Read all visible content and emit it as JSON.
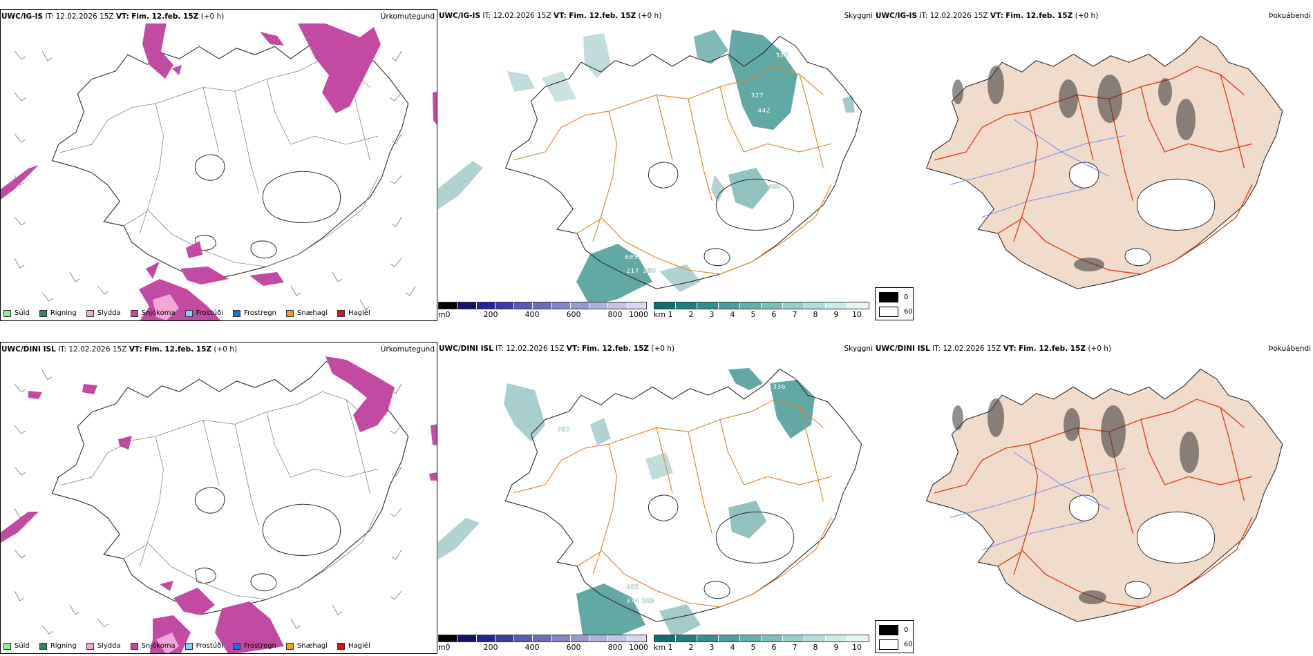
{
  "rows": [
    {
      "model": "UWC/IG-IS",
      "precip_type": {
        "title": "Úrkomutegund"
      },
      "visibility": {
        "title": "Skyggni",
        "labels": [
          "327",
          "327",
          "442",
          "695",
          "217",
          "260",
          "495"
        ]
      },
      "fog": {
        "title": "Þokuábendi"
      }
    },
    {
      "model": "UWC/DINI ISL",
      "precip_type": {
        "title": "Úrkomutegund"
      },
      "visibility": {
        "title": "Skyggni",
        "labels": [
          "336",
          "787",
          "451",
          "374",
          "203"
        ]
      },
      "fog": {
        "title": "Þokuábendi"
      }
    }
  ],
  "header": {
    "it_label": "IT:",
    "it_value": "12.02.2026 15Z",
    "vt_label": "VT:",
    "vt_value": "Fim. 12.feb. 15Z",
    "offset": "(+0 h)"
  },
  "precip_legend": [
    {
      "label": "Súld",
      "color": "#90ee90"
    },
    {
      "label": "Rigning",
      "color": "#2e8b57"
    },
    {
      "label": "Slydda",
      "color": "#f4a6d7"
    },
    {
      "label": "Snjókoma",
      "color": "#c24aa3"
    },
    {
      "label": "Frostúði",
      "color": "#87cefa"
    },
    {
      "label": "Frostregn",
      "color": "#1e6fd9"
    },
    {
      "label": "Snæhagl",
      "color": "#f5a020"
    },
    {
      "label": "Haglél",
      "color": "#e01010"
    }
  ],
  "ceiling_bar": {
    "unit": "m",
    "ticks": [
      "0",
      "200",
      "400",
      "600",
      "800",
      "1000"
    ],
    "colors": [
      "#000000",
      "#141464",
      "#22229a",
      "#3a3aa8",
      "#5a5ab8",
      "#6c6cbf",
      "#8484c9",
      "#9a9ad3",
      "#b0b0dd",
      "#c4c4e6",
      "#d8d8ef"
    ]
  },
  "vis_bar": {
    "unit": "km",
    "ticks": [
      "1",
      "2",
      "3",
      "4",
      "5",
      "6",
      "7",
      "8",
      "9",
      "10"
    ],
    "colors": [
      "#0f6e6e",
      "#237f7f",
      "#368f8e",
      "#4c9f9c",
      "#63afab",
      "#7bbfba",
      "#95cfca",
      "#b0ded9",
      "#cbece8",
      "#e6f7f5"
    ]
  },
  "fog_legend": [
    {
      "label": "0",
      "color": "#000000"
    },
    {
      "label": "60",
      "color": "#ffffff"
    }
  ],
  "colors": {
    "snow": "#c24aa3",
    "sleet": "#f4a6d7",
    "teal": "#2e8b86",
    "roads": "#e8832a",
    "fog_land": "#f1dccb",
    "fog_roads": "#e0401c",
    "rivers": "#7b8cf0"
  }
}
